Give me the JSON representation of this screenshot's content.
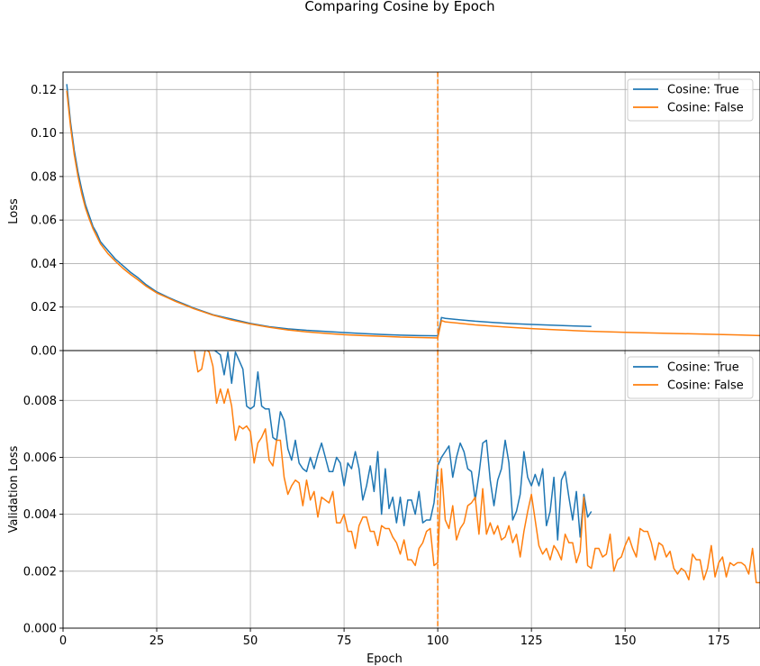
{
  "figure": {
    "title": "Comparing Cosine by Epoch"
  },
  "colors": {
    "true": "#1f77b4",
    "false": "#ff7f0e",
    "vline": "#ff7f0e",
    "grid": "#b0b0b0"
  },
  "chart_data": [
    {
      "type": "line",
      "name": "train",
      "xlabel": "",
      "ylabel": "Loss",
      "xlim": [
        0,
        186
      ],
      "ylim": [
        0.0,
        0.128
      ],
      "xticks": [
        0,
        25,
        50,
        75,
        100,
        125,
        150,
        175
      ],
      "yticks": [
        0.0,
        0.02,
        0.04,
        0.06,
        0.08,
        0.1,
        0.12
      ],
      "ytick_labels": [
        "0.00",
        "0.02",
        "0.04",
        "0.06",
        "0.08",
        "0.10",
        "0.12"
      ],
      "grid": true,
      "legend_position": "top-right",
      "vline_x": 100,
      "series": [
        {
          "name": "Cosine: True",
          "color_key": "true",
          "x": [
            1,
            2,
            3,
            4,
            5,
            6,
            7,
            8,
            9,
            10,
            12,
            14,
            16,
            18,
            20,
            22,
            25,
            28,
            30,
            35,
            40,
            45,
            50,
            55,
            60,
            65,
            70,
            75,
            80,
            85,
            90,
            95,
            100,
            101,
            102,
            105,
            110,
            115,
            120,
            125,
            130,
            135,
            141
          ],
          "y": [
            0.1225,
            0.105,
            0.092,
            0.082,
            0.074,
            0.067,
            0.062,
            0.057,
            0.054,
            0.05,
            0.046,
            0.042,
            0.039,
            0.036,
            0.0335,
            0.0305,
            0.027,
            0.0245,
            0.023,
            0.0195,
            0.0165,
            0.0145,
            0.0125,
            0.011,
            0.01,
            0.0093,
            0.0088,
            0.0083,
            0.0078,
            0.0074,
            0.0071,
            0.0069,
            0.0068,
            0.0152,
            0.0148,
            0.0143,
            0.0135,
            0.0129,
            0.0124,
            0.012,
            0.0117,
            0.0114,
            0.0111
          ]
        },
        {
          "name": "Cosine: False",
          "color_key": "false",
          "x": [
            1,
            2,
            3,
            4,
            5,
            6,
            7,
            8,
            9,
            10,
            12,
            14,
            16,
            18,
            20,
            22,
            25,
            28,
            30,
            35,
            40,
            45,
            50,
            55,
            60,
            65,
            70,
            75,
            80,
            85,
            90,
            95,
            100,
            101,
            102,
            105,
            110,
            115,
            120,
            125,
            130,
            140,
            150,
            160,
            170,
            180,
            186
          ],
          "y": [
            0.1195,
            0.103,
            0.09,
            0.08,
            0.072,
            0.0655,
            0.0605,
            0.056,
            0.0525,
            0.049,
            0.0445,
            0.041,
            0.0378,
            0.035,
            0.0325,
            0.0298,
            0.0265,
            0.0242,
            0.0226,
            0.0192,
            0.0163,
            0.014,
            0.0122,
            0.0107,
            0.0095,
            0.0086,
            0.0079,
            0.0073,
            0.0069,
            0.0066,
            0.0062,
            0.006,
            0.0058,
            0.0138,
            0.0132,
            0.0127,
            0.0118,
            0.0112,
            0.0106,
            0.0101,
            0.0097,
            0.0089,
            0.0084,
            0.008,
            0.0076,
            0.0072,
            0.0069
          ]
        }
      ]
    },
    {
      "type": "line",
      "name": "validation",
      "xlabel": "Epoch",
      "ylabel": "Validation Loss",
      "xlim": [
        0,
        186
      ],
      "ylim": [
        0.0,
        0.00975
      ],
      "xticks": [
        0,
        25,
        50,
        75,
        100,
        125,
        150,
        175
      ],
      "yticks": [
        0.0,
        0.002,
        0.004,
        0.006,
        0.008
      ],
      "ytick_labels": [
        "0.000",
        "0.002",
        "0.004",
        "0.006",
        "0.008"
      ],
      "grid": true,
      "legend_position": "top-right",
      "vline_x": 100,
      "series": [
        {
          "name": "Cosine: True",
          "color_key": "true",
          "x": [
            40,
            41,
            42,
            43,
            44,
            45,
            46,
            47,
            48,
            49,
            50,
            51,
            52,
            53,
            54,
            55,
            56,
            57,
            58,
            59,
            60,
            61,
            62,
            63,
            64,
            65,
            66,
            67,
            68,
            69,
            70,
            71,
            72,
            73,
            74,
            75,
            76,
            77,
            78,
            79,
            80,
            81,
            82,
            83,
            84,
            85,
            86,
            87,
            88,
            89,
            90,
            91,
            92,
            93,
            94,
            95,
            96,
            97,
            98,
            99,
            100,
            101,
            102,
            103,
            104,
            105,
            106,
            107,
            108,
            109,
            110,
            111,
            112,
            113,
            114,
            115,
            116,
            117,
            118,
            119,
            120,
            121,
            122,
            123,
            124,
            125,
            126,
            127,
            128,
            129,
            130,
            131,
            132,
            133,
            134,
            135,
            136,
            137,
            138,
            139,
            140,
            141
          ],
          "y": [
            0.0098,
            0.0097,
            0.0096,
            0.0089,
            0.0097,
            0.0086,
            0.0097,
            0.0094,
            0.0091,
            0.0078,
            0.0077,
            0.0078,
            0.009,
            0.0078,
            0.0077,
            0.0077,
            0.0067,
            0.0066,
            0.0076,
            0.0073,
            0.0063,
            0.0059,
            0.0066,
            0.0058,
            0.0056,
            0.0055,
            0.006,
            0.0056,
            0.0061,
            0.0065,
            0.006,
            0.0055,
            0.0055,
            0.006,
            0.0058,
            0.005,
            0.0058,
            0.0056,
            0.0062,
            0.0056,
            0.0045,
            0.005,
            0.0057,
            0.0048,
            0.0062,
            0.004,
            0.0056,
            0.0042,
            0.0046,
            0.0037,
            0.0046,
            0.0036,
            0.0045,
            0.0045,
            0.004,
            0.0048,
            0.0037,
            0.0038,
            0.0038,
            0.0044,
            0.0057,
            0.006,
            0.0062,
            0.0064,
            0.0053,
            0.006,
            0.0065,
            0.0062,
            0.0056,
            0.0055,
            0.0045,
            0.0054,
            0.0065,
            0.0066,
            0.0052,
            0.0043,
            0.0052,
            0.0056,
            0.0066,
            0.0058,
            0.0038,
            0.0041,
            0.0047,
            0.0062,
            0.0053,
            0.005,
            0.0054,
            0.005,
            0.0056,
            0.0036,
            0.0041,
            0.0053,
            0.0031,
            0.0052,
            0.0055,
            0.0046,
            0.0038,
            0.0048,
            0.0032,
            0.0047,
            0.0039,
            0.0041
          ]
        },
        {
          "name": "Cosine: False",
          "color_key": "false",
          "x": [
            35,
            36,
            37,
            38,
            39,
            40,
            41,
            42,
            43,
            44,
            45,
            46,
            47,
            48,
            49,
            50,
            51,
            52,
            53,
            54,
            55,
            56,
            57,
            58,
            59,
            60,
            61,
            62,
            63,
            64,
            65,
            66,
            67,
            68,
            69,
            70,
            71,
            72,
            73,
            74,
            75,
            76,
            77,
            78,
            79,
            80,
            81,
            82,
            83,
            84,
            85,
            86,
            87,
            88,
            89,
            90,
            91,
            92,
            93,
            94,
            95,
            96,
            97,
            98,
            99,
            100,
            101,
            102,
            103,
            104,
            105,
            106,
            107,
            108,
            109,
            110,
            111,
            112,
            113,
            114,
            115,
            116,
            117,
            118,
            119,
            120,
            121,
            122,
            123,
            124,
            125,
            126,
            127,
            128,
            129,
            130,
            131,
            132,
            133,
            134,
            135,
            136,
            137,
            138,
            139,
            140,
            141,
            142,
            143,
            144,
            145,
            146,
            147,
            148,
            149,
            150,
            151,
            152,
            153,
            154,
            155,
            156,
            157,
            158,
            159,
            160,
            161,
            162,
            163,
            164,
            165,
            166,
            167,
            168,
            169,
            170,
            171,
            172,
            173,
            174,
            175,
            176,
            177,
            178,
            179,
            180,
            181,
            182,
            183,
            184,
            185,
            186
          ],
          "y": [
            0.0098,
            0.009,
            0.0091,
            0.0098,
            0.0097,
            0.0092,
            0.0079,
            0.0084,
            0.0079,
            0.0084,
            0.0078,
            0.0066,
            0.0071,
            0.007,
            0.0071,
            0.0069,
            0.0058,
            0.0065,
            0.0067,
            0.007,
            0.0059,
            0.0057,
            0.0066,
            0.0066,
            0.0053,
            0.0047,
            0.005,
            0.0052,
            0.0051,
            0.0043,
            0.0052,
            0.0045,
            0.0048,
            0.0039,
            0.0046,
            0.0045,
            0.0044,
            0.0048,
            0.0037,
            0.0037,
            0.004,
            0.0034,
            0.0034,
            0.0028,
            0.0036,
            0.0039,
            0.0039,
            0.0034,
            0.0034,
            0.0029,
            0.0036,
            0.0035,
            0.0035,
            0.0032,
            0.003,
            0.0026,
            0.0031,
            0.0024,
            0.0024,
            0.0022,
            0.0028,
            0.003,
            0.0034,
            0.0035,
            0.0022,
            0.0023,
            0.0056,
            0.0038,
            0.0035,
            0.0043,
            0.0031,
            0.0035,
            0.0037,
            0.0043,
            0.0044,
            0.0046,
            0.0033,
            0.0049,
            0.0033,
            0.0037,
            0.0033,
            0.0036,
            0.0031,
            0.0032,
            0.0036,
            0.003,
            0.0033,
            0.0025,
            0.0034,
            0.0041,
            0.0047,
            0.0038,
            0.0029,
            0.0026,
            0.0028,
            0.0024,
            0.0029,
            0.0027,
            0.0024,
            0.0033,
            0.003,
            0.003,
            0.0023,
            0.0027,
            0.0046,
            0.0022,
            0.0021,
            0.0028,
            0.0028,
            0.0025,
            0.0026,
            0.0033,
            0.002,
            0.0024,
            0.0025,
            0.0029,
            0.0032,
            0.0028,
            0.0025,
            0.0035,
            0.0034,
            0.0034,
            0.003,
            0.0024,
            0.003,
            0.0029,
            0.0025,
            0.0027,
            0.0021,
            0.0019,
            0.0021,
            0.002,
            0.0017,
            0.0026,
            0.0024,
            0.0024,
            0.0017,
            0.0021,
            0.0029,
            0.0018,
            0.0023,
            0.0025,
            0.0018,
            0.0023,
            0.0022,
            0.0023,
            0.0023,
            0.0022,
            0.0019,
            0.0028,
            0.0016,
            0.0016
          ]
        }
      ]
    }
  ]
}
